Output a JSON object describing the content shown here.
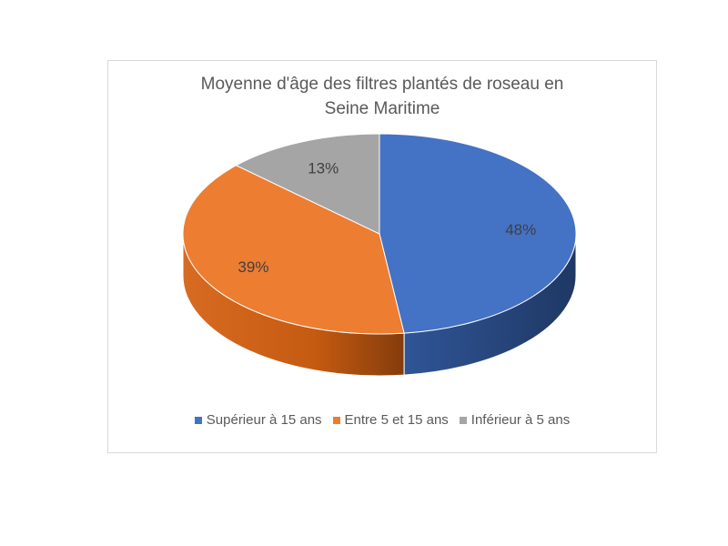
{
  "chart_data": {
    "type": "pie",
    "title_line1": "Moyenne d'âge des filtres plantés de roseau en",
    "title_line2": "Seine Maritime",
    "slices": [
      {
        "label": "Supérieur à 15 ans",
        "value": 48,
        "display": "48%",
        "color": "#4472C4",
        "side_color": "#203864"
      },
      {
        "label": "Entre 5 et 15 ans",
        "value": 39,
        "display": "39%",
        "color": "#ED7D31",
        "side_color": "#C55A11"
      },
      {
        "label": "Inférieur à 5 ans",
        "value": 13,
        "display": "13%",
        "color": "#A5A5A5",
        "side_color": "#7F7F7F"
      }
    ],
    "legend_position": "bottom",
    "three_d": true
  }
}
